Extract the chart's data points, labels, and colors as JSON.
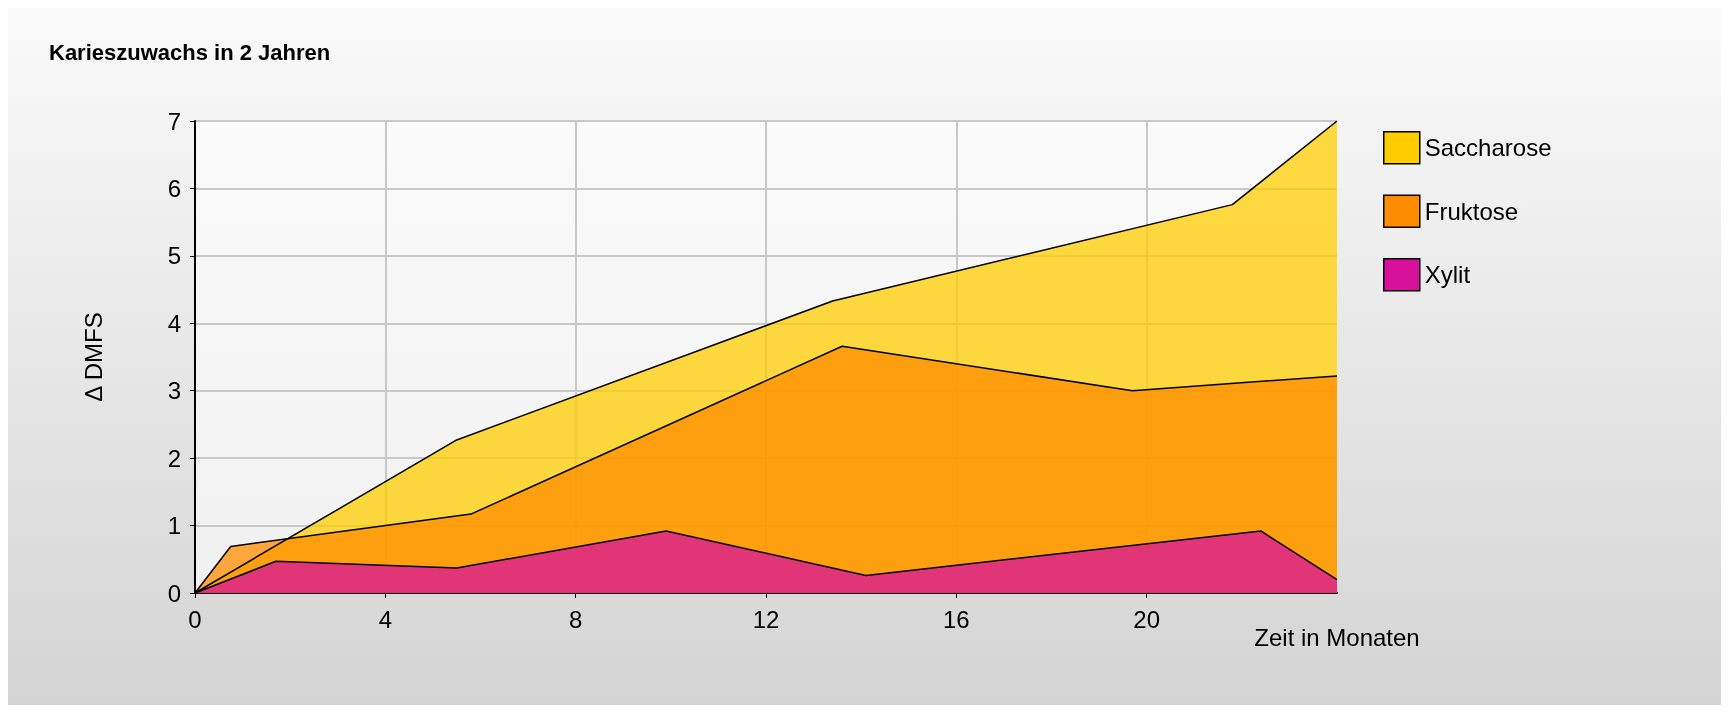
{
  "chart_data": {
    "type": "area",
    "title": "Karieszuwachs in 2 Jahren",
    "xlabel": "Zeit in Monaten",
    "ylabel": "Δ DMFS",
    "xlim": [
      0,
      24
    ],
    "xticks": [
      0,
      4,
      8,
      12,
      16,
      20
    ],
    "ylim": [
      0,
      7
    ],
    "yticks": [
      0,
      1,
      2,
      3,
      4,
      5,
      6,
      7
    ],
    "grid": true,
    "legend": "top right",
    "series": [
      {
        "name": "Saccharose",
        "color": "#ffcc00",
        "x": [
          0,
          5.5,
          13.4,
          21.8,
          24
        ],
        "values": [
          0,
          2.27,
          4.33,
          5.76,
          7.0
        ]
      },
      {
        "name": "Fruktose",
        "color": "#ff8c00",
        "x": [
          0,
          0.75,
          5.8,
          13.6,
          19.7,
          24
        ],
        "values": [
          0,
          0.69,
          1.17,
          3.66,
          3.0,
          3.22
        ]
      },
      {
        "name": "Xylit",
        "color": "#d8119c",
        "x": [
          0,
          1.7,
          5.5,
          9.9,
          14.1,
          22.4,
          24
        ],
        "values": [
          0,
          0.47,
          0.37,
          0.92,
          0.26,
          0.92,
          0.2
        ]
      }
    ]
  }
}
